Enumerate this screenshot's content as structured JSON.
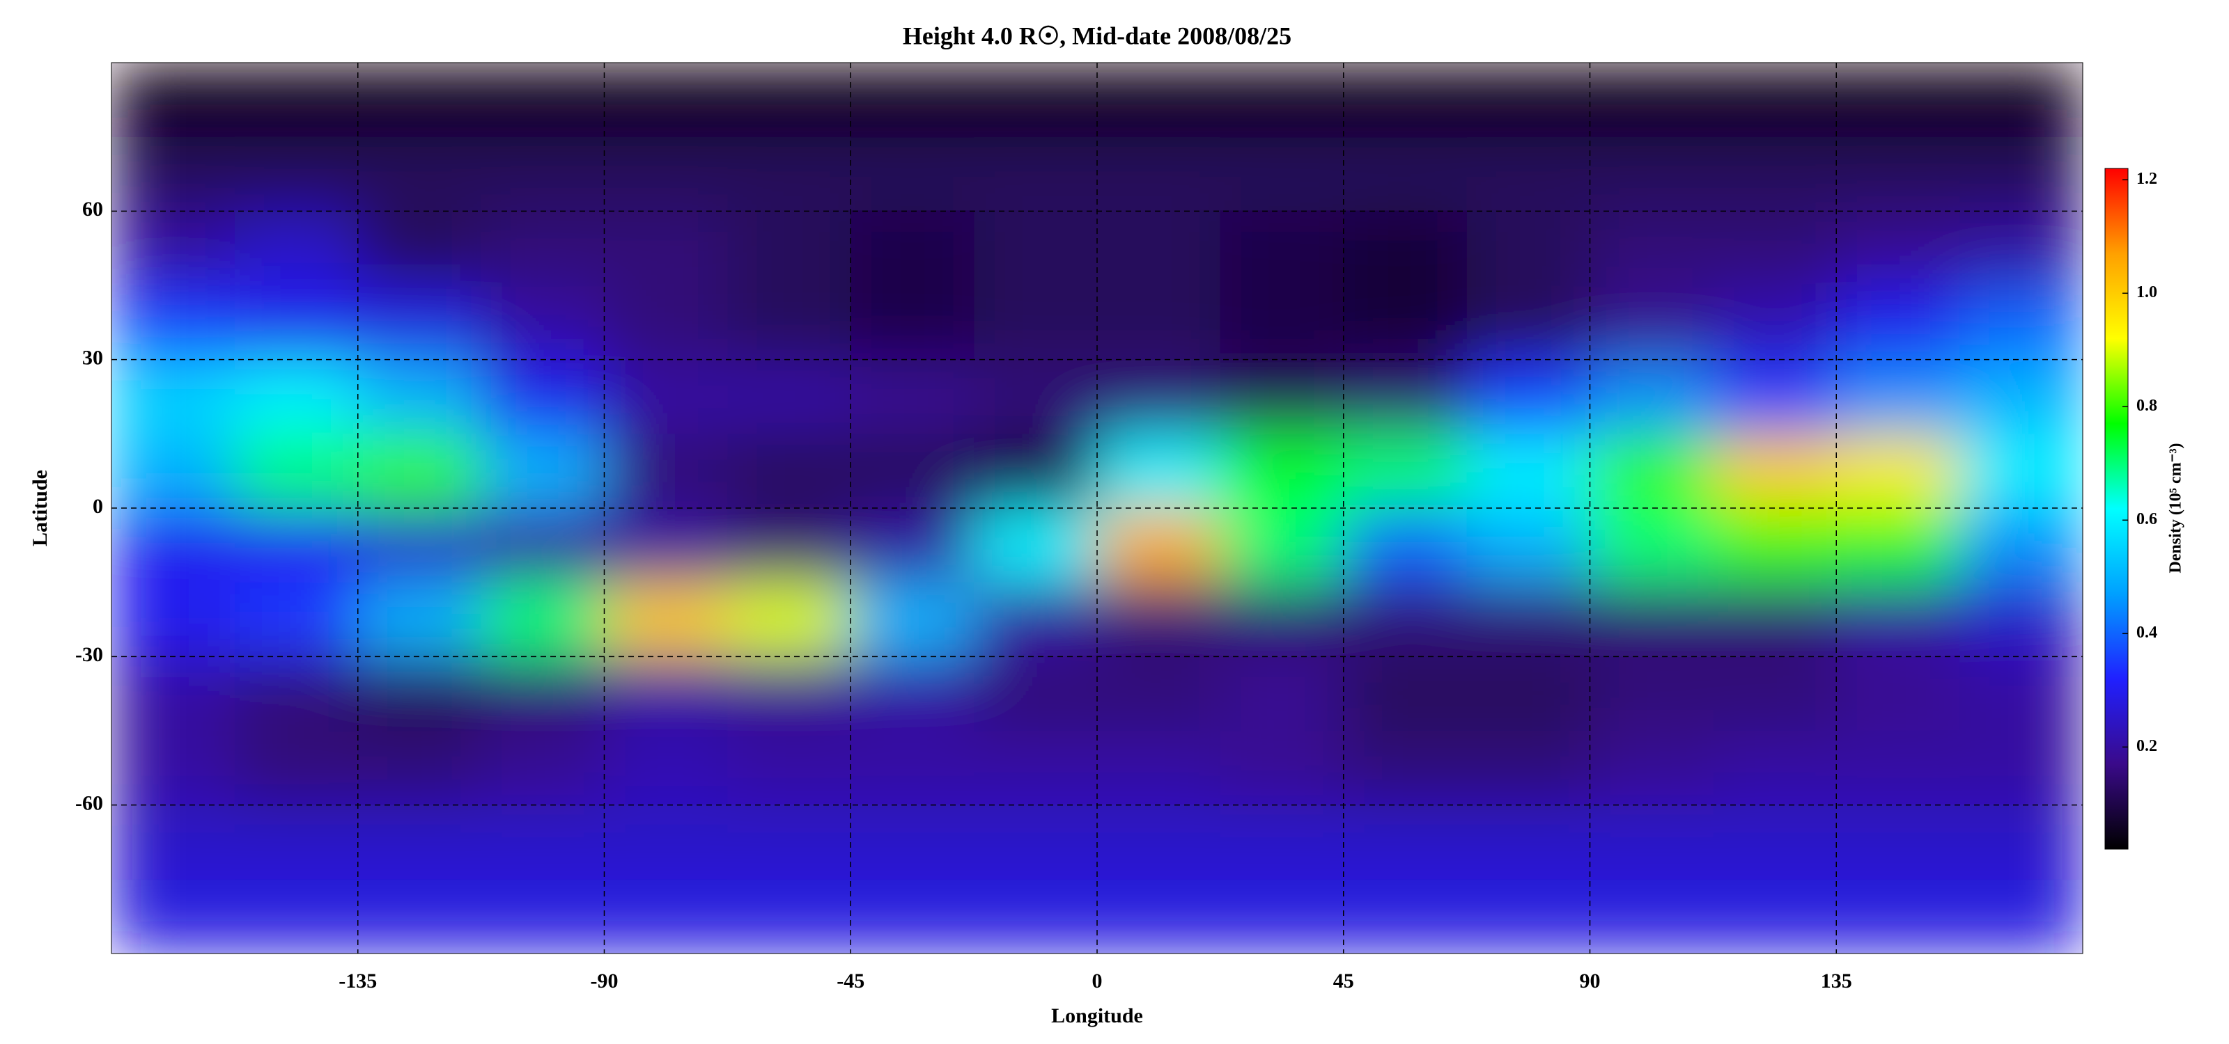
{
  "chart_data": {
    "type": "heatmap",
    "title": "Height 4.0 R☉, Mid-date 2008/08/25",
    "xlabel": "Longitude",
    "ylabel": "Latitude",
    "colorbar_label": "Density (10⁵ cm⁻³)",
    "x": [
      -168.75,
      -146.25,
      -123.75,
      -101.25,
      -78.75,
      -56.25,
      -33.75,
      -11.25,
      11.25,
      33.75,
      56.25,
      78.75,
      101.25,
      123.75,
      146.25,
      168.75
    ],
    "y": [
      82.5,
      67.5,
      52.5,
      37.5,
      22.5,
      7.5,
      -7.5,
      -22.5,
      -37.5,
      -52.5,
      -67.5,
      -82.5
    ],
    "z": [
      [
        0.04,
        0.04,
        0.04,
        0.04,
        0.04,
        0.04,
        0.04,
        0.04,
        0.04,
        0.04,
        0.04,
        0.04,
        0.04,
        0.04,
        0.04,
        0.04
      ],
      [
        0.12,
        0.12,
        0.12,
        0.12,
        0.12,
        0.12,
        0.12,
        0.12,
        0.12,
        0.12,
        0.12,
        0.12,
        0.12,
        0.12,
        0.12,
        0.12
      ],
      [
        0.2,
        0.25,
        0.12,
        0.15,
        0.15,
        0.12,
        0.1,
        0.12,
        0.12,
        0.1,
        0.08,
        0.12,
        0.15,
        0.15,
        0.18,
        0.2
      ],
      [
        0.35,
        0.3,
        0.28,
        0.2,
        0.15,
        0.12,
        0.1,
        0.12,
        0.12,
        0.1,
        0.08,
        0.12,
        0.18,
        0.22,
        0.3,
        0.4
      ],
      [
        0.55,
        0.6,
        0.5,
        0.3,
        0.2,
        0.2,
        0.18,
        0.15,
        0.15,
        0.12,
        0.15,
        0.35,
        0.45,
        0.35,
        0.45,
        0.5
      ],
      [
        0.5,
        0.7,
        0.8,
        0.5,
        0.15,
        0.12,
        0.12,
        0.1,
        0.6,
        0.75,
        0.7,
        0.6,
        0.8,
        1.0,
        0.95,
        0.6
      ],
      [
        0.3,
        0.3,
        0.25,
        0.2,
        0.2,
        0.15,
        0.2,
        0.6,
        1.05,
        0.7,
        0.4,
        0.5,
        0.7,
        0.8,
        0.75,
        0.45
      ],
      [
        0.3,
        0.35,
        0.5,
        0.7,
        1.0,
        0.9,
        0.5,
        0.2,
        0.15,
        0.15,
        0.15,
        0.15,
        0.15,
        0.15,
        0.2,
        0.25
      ],
      [
        0.2,
        0.15,
        0.12,
        0.15,
        0.2,
        0.18,
        0.2,
        0.15,
        0.15,
        0.18,
        0.12,
        0.12,
        0.15,
        0.15,
        0.18,
        0.2
      ],
      [
        0.2,
        0.15,
        0.15,
        0.18,
        0.22,
        0.2,
        0.2,
        0.2,
        0.2,
        0.18,
        0.15,
        0.15,
        0.18,
        0.2,
        0.2,
        0.2
      ],
      [
        0.25,
        0.25,
        0.25,
        0.25,
        0.25,
        0.25,
        0.25,
        0.25,
        0.25,
        0.25,
        0.25,
        0.25,
        0.25,
        0.25,
        0.25,
        0.25
      ],
      [
        0.28,
        0.28,
        0.28,
        0.28,
        0.28,
        0.28,
        0.28,
        0.28,
        0.28,
        0.28,
        0.28,
        0.28,
        0.28,
        0.28,
        0.28,
        0.28
      ]
    ],
    "xlim": [
      -180,
      180
    ],
    "xticks": [
      -135,
      -90,
      -45,
      0,
      45,
      90,
      135
    ],
    "ylim": [
      -90,
      90
    ],
    "yticks": [
      -60,
      -30,
      0,
      30,
      60
    ],
    "clim": [
      0.02,
      1.22
    ],
    "cticks": [
      0.2,
      0.4,
      0.6,
      0.8,
      {
        "value": 1,
        "label": "1.0"
      },
      1.2
    ],
    "colormap": [
      "#000000",
      "#3a0a8a",
      "#2020ff",
      "#00a0ff",
      "#00ffff",
      "#00ff00",
      "#ffff00",
      "#ffa000",
      "#ff0000"
    ],
    "grid": true
  }
}
